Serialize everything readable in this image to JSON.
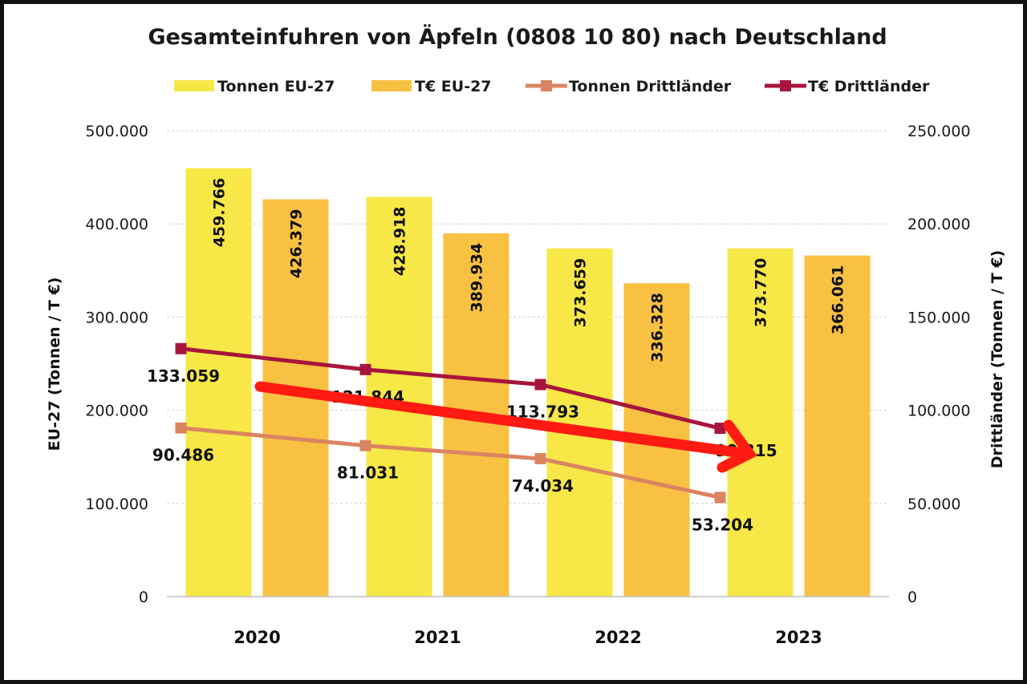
{
  "chart_data": {
    "type": "bar",
    "title": "Gesamteinfuhren von Äpfeln (0808 10 80) nach Deutschland",
    "categories": [
      "2020",
      "2021",
      "2022",
      "2023"
    ],
    "ylabel_left": "EU-27 (Tonnen / T €)",
    "ylabel_right": "Drittländer (Tonnen / T €)",
    "ylim_left": [
      0,
      500000
    ],
    "ylim_right": [
      0,
      250000
    ],
    "yticks_left": [
      "0",
      "100.000",
      "200.000",
      "300.000",
      "400.000",
      "500.000"
    ],
    "yticks_right": [
      "0",
      "50.000",
      "100.000",
      "150.000",
      "200.000",
      "250.000"
    ],
    "grid": true,
    "legend_position": "top",
    "series": [
      {
        "name": "Tonnen EU-27",
        "kind": "bar",
        "axis": "left",
        "color": "#F8E847",
        "values": [
          459766,
          428918,
          373659,
          373770
        ],
        "labels": [
          "459.766",
          "428.918",
          "373.659",
          "373.770"
        ]
      },
      {
        "name": "T€ EU-27",
        "kind": "bar",
        "axis": "left",
        "color": "#F8C142",
        "values": [
          426379,
          389934,
          336328,
          366061
        ],
        "labels": [
          "426.379",
          "389.934",
          "336.328",
          "366.061"
        ]
      },
      {
        "name": "Tonnen Drittländer",
        "kind": "line",
        "axis": "right",
        "color": "#DB8462",
        "values": [
          90486,
          81031,
          74034,
          53204
        ],
        "labels": [
          "90.486",
          "81.031",
          "74.034",
          "53.204"
        ]
      },
      {
        "name": "T€ Drittländer",
        "kind": "line",
        "axis": "right",
        "color": "#A8153C",
        "values": [
          133059,
          121844,
          113793,
          90315
        ],
        "labels": [
          "133.059",
          "121.844",
          "113.793",
          "90.315"
        ]
      }
    ],
    "annotation": {
      "type": "trend-arrow",
      "color": "#FF1A12",
      "direction": "down"
    }
  }
}
